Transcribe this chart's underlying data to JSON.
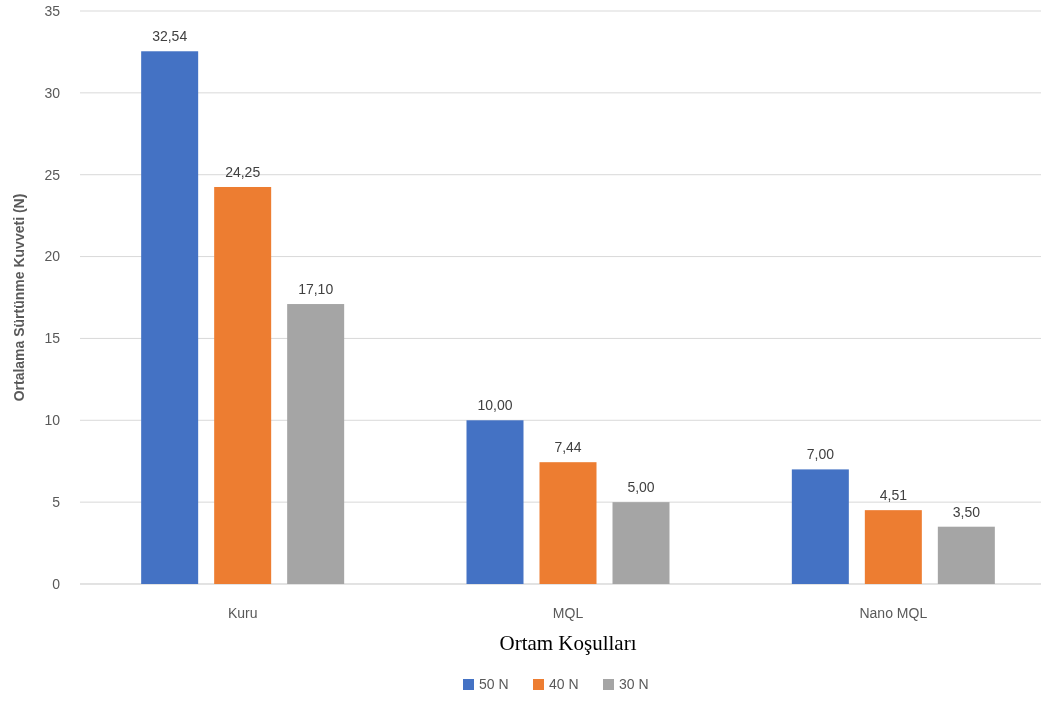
{
  "chart_data": {
    "type": "bar",
    "ylabel": "Ortalama Sürtünme Kuvveti (N)",
    "xlabel": "Ortam Koşulları",
    "categories": [
      "Kuru",
      "MQL",
      "Nano MQL"
    ],
    "series": [
      {
        "name": "50 N",
        "color": "#4472c4",
        "values": [
          32.54,
          10.0,
          7.0
        ],
        "value_labels": [
          "32,54",
          "10,00",
          "7,00"
        ]
      },
      {
        "name": "40 N",
        "color": "#ed7d31",
        "values": [
          24.25,
          7.44,
          4.51
        ],
        "value_labels": [
          "24,25",
          "7,44",
          "4,51"
        ]
      },
      {
        "name": "30 N",
        "color": "#a5a5a5",
        "values": [
          17.1,
          5.0,
          3.5
        ],
        "value_labels": [
          "17,10",
          "5,00",
          "3,50"
        ]
      }
    ],
    "ylim": [
      0,
      35
    ],
    "yticks": [
      0,
      5,
      10,
      15,
      20,
      25,
      30,
      35
    ],
    "grid": "y",
    "legend": "bottom"
  }
}
